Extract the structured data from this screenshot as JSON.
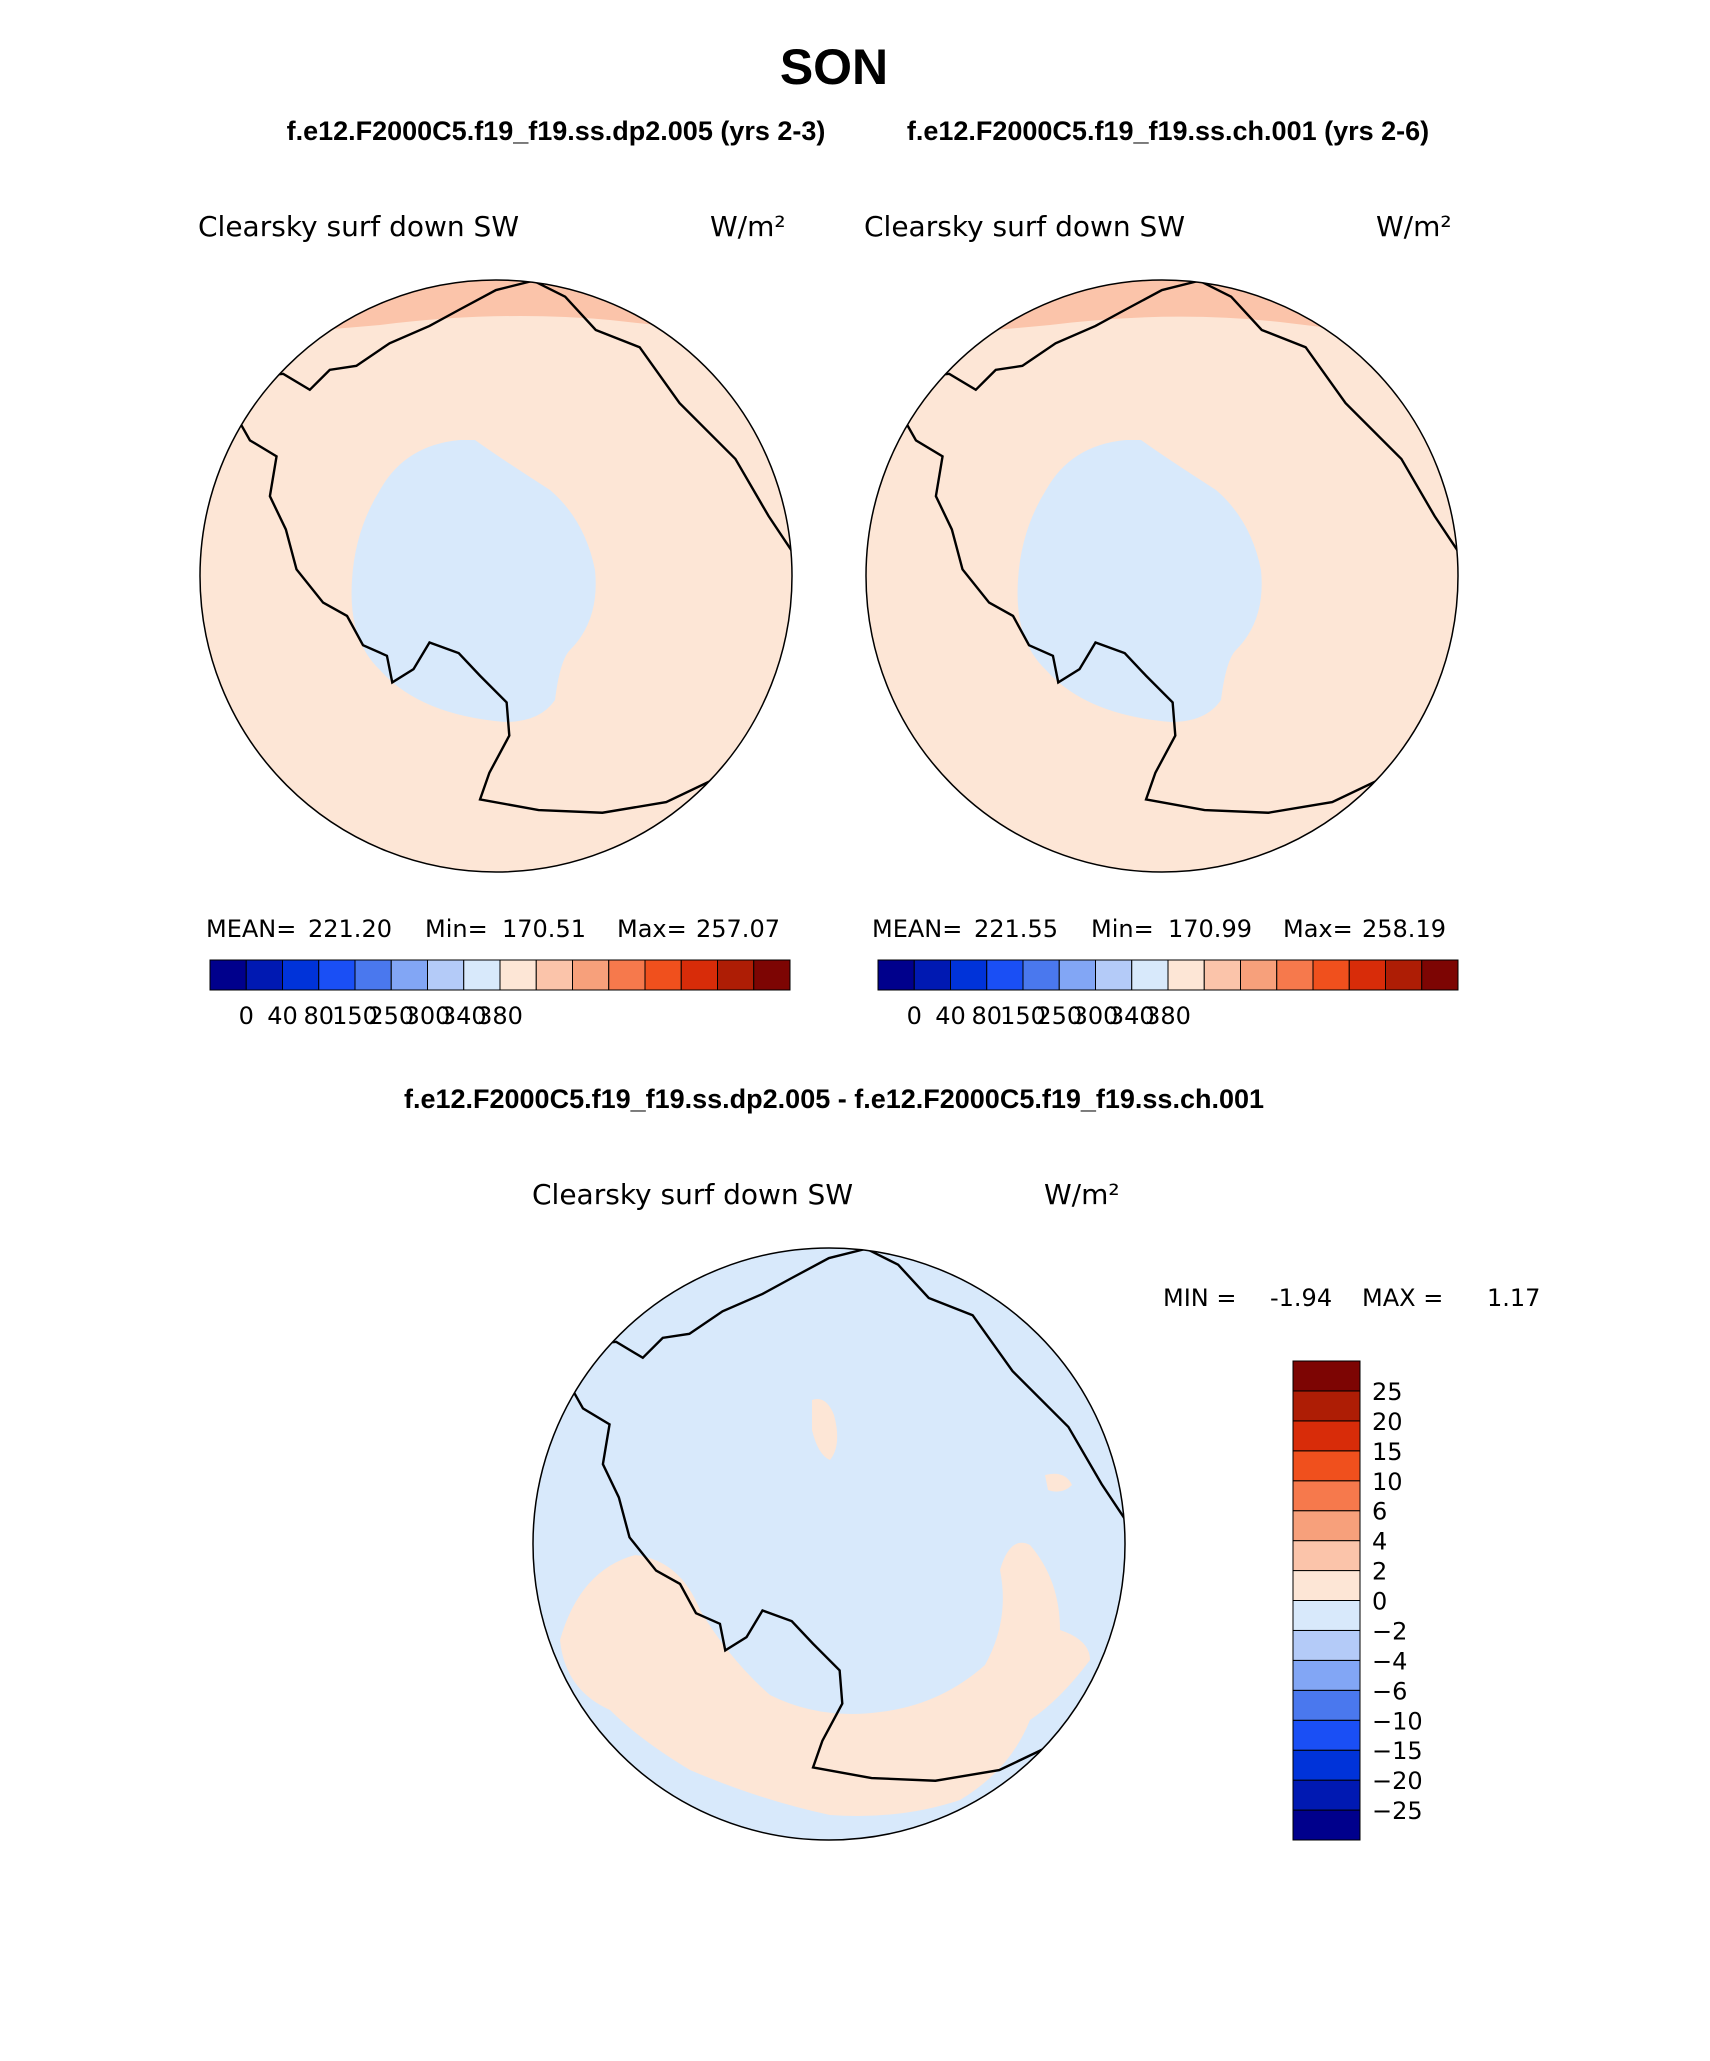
{
  "figure": {
    "season": "SON",
    "case_a_title": "f.e12.F2000C5.f19_f19.ss.dp2.005 (yrs 2-3)",
    "case_b_title": "f.e12.F2000C5.f19_f19.ss.ch.001 (yrs 2-6)",
    "diff_title": "f.e12.F2000C5.f19_f19.ss.dp2.005 - f.e12.F2000C5.f19_f19.ss.ch.001"
  },
  "panels": {
    "left": {
      "variable": "Clearsky surf down SW",
      "units": "W/m²",
      "stats": {
        "mean": "221.20",
        "min": "170.51",
        "max": "257.07"
      },
      "mean_label": "MEAN=",
      "min_label": "Min=",
      "max_label": "Max="
    },
    "right": {
      "variable": "Clearsky surf down SW",
      "units": "W/m²",
      "stats": {
        "mean": "221.55",
        "min": "170.99",
        "max": "258.19"
      },
      "mean_label": "MEAN=",
      "min_label": "Min=",
      "max_label": "Max="
    },
    "diff": {
      "variable": "Clearsky surf down SW",
      "units": "W/m²",
      "min_label": "MIN =",
      "min_value": "-1.94",
      "max_label": "MAX =",
      "max_value": "1.17"
    }
  },
  "colorbars": {
    "abs_colors": [
      "#00008c",
      "#0019b2",
      "#0033d9",
      "#1a4ff5",
      "#4a78ee",
      "#82a6f5",
      "#b4cbf8",
      "#d8e9fb",
      "#fde6d6",
      "#fbc4aa",
      "#f7a07b",
      "#f6794c",
      "#f0501d",
      "#d82c09",
      "#ae1d05",
      "#7d0503"
    ],
    "abs_tick_labels": [
      "0",
      "40",
      "80",
      "150",
      "250",
      "300",
      "340",
      "380"
    ],
    "diff_colors": [
      "#00008c",
      "#0019b2",
      "#0033d9",
      "#1a4ff5",
      "#4a78ee",
      "#82a6f5",
      "#b4cbf8",
      "#d8e9fb",
      "#fde6d6",
      "#fbc4aa",
      "#f7a07b",
      "#f6794c",
      "#f0501d",
      "#d82c09",
      "#ae1d05",
      "#7d0503"
    ],
    "diff_tick_labels": [
      "−25",
      "−20",
      "−15",
      "−10",
      "−6",
      "−4",
      "−2",
      "0",
      "2",
      "4",
      "6",
      "10",
      "15",
      "20",
      "25"
    ]
  },
  "map_colors": {
    "light_peach": "#fde6d6",
    "peach": "#fbc4aa",
    "light_blue": "#d8e9fb",
    "coast": "#000000"
  }
}
